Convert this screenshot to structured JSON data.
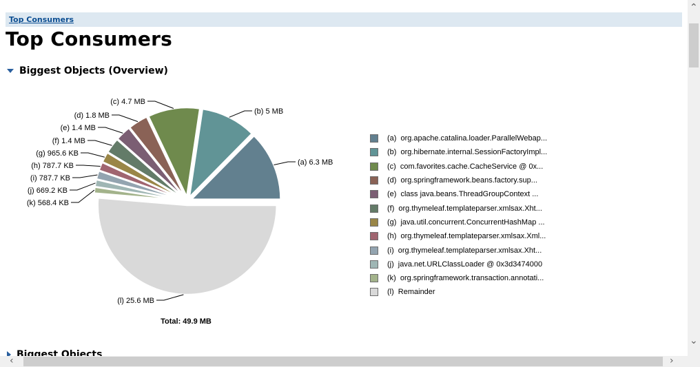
{
  "breadcrumb": {
    "link": "Top Consumers"
  },
  "page": {
    "title": "Top Consumers"
  },
  "sections": {
    "overview": "Biggest Objects (Overview)",
    "objects": "Biggest Objects"
  },
  "chart_data": {
    "type": "pie",
    "title": "",
    "unit": "KB",
    "total_label": "Total: 49.9 MB",
    "slices": [
      {
        "key": "a",
        "label": "(a)  6.3 MB",
        "value": 6451.2,
        "color": "#62808f",
        "legend": "org.apache.catalina.loader.ParallelWebap..."
      },
      {
        "key": "b",
        "label": "(b)  5 MB",
        "value": 5120,
        "color": "#619496",
        "legend": "org.hibernate.internal.SessionFactoryImpl..."
      },
      {
        "key": "c",
        "label": "(c)  4.7 MB",
        "value": 4812.8,
        "color": "#6f8a4d",
        "legend": "com.favorites.cache.CacheService @ 0x..."
      },
      {
        "key": "d",
        "label": "(d)  1.8 MB",
        "value": 1843.2,
        "color": "#8a6256",
        "legend": "org.springframework.beans.factory.sup..."
      },
      {
        "key": "e",
        "label": "(e)  1.4 MB",
        "value": 1433.6,
        "color": "#7b5e73",
        "legend": "class java.beans.ThreadGroupContext ..."
      },
      {
        "key": "f",
        "label": "(f)  1.4 MB",
        "value": 1433.6,
        "color": "#637b68",
        "legend": "org.thymeleaf.templateparser.xmlsax.Xht..."
      },
      {
        "key": "g",
        "label": "(g)  965.6 KB",
        "value": 965.6,
        "color": "#9a8647",
        "legend": "java.util.concurrent.ConcurrentHashMap ..."
      },
      {
        "key": "h",
        "label": "(h)  787.7 KB",
        "value": 787.7,
        "color": "#a06570",
        "legend": "org.thymeleaf.templateparser.xmlsax.Xml..."
      },
      {
        "key": "i",
        "label": "(i)  787.7 KB",
        "value": 787.7,
        "color": "#93a4b0",
        "legend": "org.thymeleaf.templateparser.xmlsax.Xht..."
      },
      {
        "key": "j",
        "label": "(j)  669.2 KB",
        "value": 669.2,
        "color": "#9fb6b4",
        "legend": "java.net.URLClassLoader @ 0x3d3474000"
      },
      {
        "key": "k",
        "label": "(k)  568.4 KB",
        "value": 568.4,
        "color": "#a3b38b",
        "legend": "org.springframework.transaction.annotati..."
      },
      {
        "key": "l",
        "label": "(l)  25.6 MB",
        "value": 26214.4,
        "color": "#d9d9d9",
        "legend": "Remainder"
      }
    ]
  }
}
